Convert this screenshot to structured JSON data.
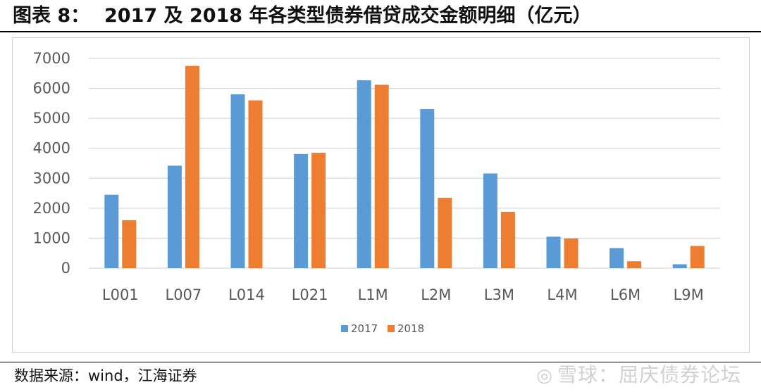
{
  "header": {
    "label": "图表 8：",
    "title": "2017 及 2018 年各类型债券借贷成交金额明细（亿元）"
  },
  "footer": {
    "source": "数据来源：wind，江海证券"
  },
  "watermark": {
    "logo_icon": "snowball-logo-icon",
    "text": "雪球：屈庆债券论坛"
  },
  "colors": {
    "series_2017": "#5b9bd5",
    "series_2018": "#ed7d31",
    "grid": "#d9d9d9",
    "axis_text": "#595959"
  },
  "chart_data": {
    "type": "bar",
    "title": "",
    "xlabel": "",
    "ylabel": "",
    "ylim": [
      0,
      7000
    ],
    "yticks": [
      0,
      1000,
      2000,
      3000,
      4000,
      5000,
      6000,
      7000
    ],
    "grid": true,
    "legend": "bottom-center",
    "categories": [
      "L001",
      "L007",
      "L014",
      "L021",
      "L1M",
      "L2M",
      "L3M",
      "L4M",
      "L6M",
      "L9M"
    ],
    "series": [
      {
        "name": "2017",
        "color": "#5b9bd5",
        "values": [
          2450,
          3420,
          5800,
          3810,
          6270,
          5310,
          3160,
          1050,
          670,
          130
        ]
      },
      {
        "name": "2018",
        "color": "#ed7d31",
        "values": [
          1600,
          6750,
          5600,
          3850,
          6120,
          2350,
          1880,
          990,
          230,
          740
        ]
      }
    ]
  }
}
